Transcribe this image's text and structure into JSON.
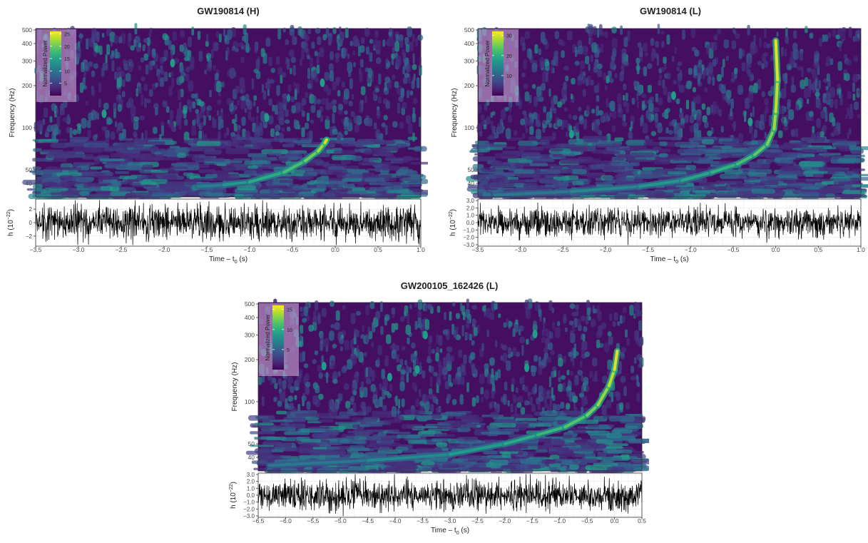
{
  "chart_data": [
    {
      "type": "heatmap",
      "title": "GW190814 (H)",
      "spectrogram": {
        "ylabel": "Frequency (Hz)",
        "yscale": "log",
        "ylim": [
          32,
          512
        ],
        "yticks": [
          "40",
          "50",
          "100",
          "200",
          "300",
          "400",
          "500"
        ],
        "colorbar": {
          "label": "Normalized Power",
          "min": 0,
          "max": 26,
          "ticks": [
            "5",
            "10",
            "15",
            "20",
            "25"
          ]
        },
        "track": {
          "points": [
            [
              -1.6,
              38
            ],
            [
              -1.3,
              39
            ],
            [
              -1.0,
              41
            ],
            [
              -0.6,
              48
            ],
            [
              -0.35,
              58
            ],
            [
              -0.2,
              68
            ],
            [
              -0.12,
              78
            ],
            [
              -0.1,
              82
            ]
          ],
          "peak_power": 25
        },
        "features": [
          [
            -2.7,
            126
          ],
          [
            -0.8,
            118
          ],
          [
            -1.9,
            290
          ],
          [
            -0.15,
            210
          ]
        ]
      },
      "strain": {
        "xlabel": "Time – t",
        "xlabel_sub": "0",
        "xlabel_unit": " (s)",
        "ylabel": "h (10",
        "ylabel_exp": "−22",
        "ylabel_close": ")",
        "xlim": [
          -3.5,
          1.0
        ],
        "ylim": [
          -3.5,
          3.5
        ],
        "xticks": [
          "−3.5",
          "−3.0",
          "−2.5",
          "−2.0",
          "−1.5",
          "−1.0",
          "−0.5",
          "0.0",
          "0.5",
          "1.0"
        ],
        "yticks": [
          "2",
          "0",
          "−2"
        ],
        "amplitude": 1.3
      }
    },
    {
      "type": "heatmap",
      "title": "GW190814 (L)",
      "spectrogram": {
        "ylabel": "Frequency (Hz)",
        "yscale": "log",
        "ylim": [
          32,
          512
        ],
        "yticks": [
          "40",
          "50",
          "100",
          "200",
          "300",
          "400",
          "500"
        ],
        "colorbar": {
          "label": "Normalized Power",
          "min": 0,
          "max": 32,
          "ticks": [
            "10",
            "20",
            "30"
          ]
        },
        "track": {
          "points": [
            [
              -3.3,
              33
            ],
            [
              -2.4,
              35
            ],
            [
              -1.6,
              38
            ],
            [
              -1.1,
              42
            ],
            [
              -0.75,
              48
            ],
            [
              -0.45,
              55
            ],
            [
              -0.25,
              64
            ],
            [
              -0.1,
              76
            ],
            [
              -0.02,
              98
            ],
            [
              0.0,
              130
            ],
            [
              0.02,
              220
            ],
            [
              0.0,
              420
            ]
          ],
          "peak_power": 30
        },
        "features": [
          [
            -0.3,
            110
          ],
          [
            -1.2,
            170
          ],
          [
            -2.4,
            90
          ]
        ]
      },
      "strain": {
        "xlabel": "Time – t",
        "xlabel_sub": "0",
        "xlabel_unit": " (s)",
        "ylabel": "h (10",
        "ylabel_exp": "−22",
        "ylabel_close": ")",
        "xlim": [
          -3.5,
          1.0
        ],
        "ylim": [
          -3.2,
          3.2
        ],
        "xticks": [
          "−3.5",
          "−3.0",
          "−2.5",
          "−2.0",
          "−1.5",
          "−1.0",
          "−0.5",
          "0.0",
          "0.5",
          "1.0"
        ],
        "yticks": [
          "3.0",
          "2.0",
          "1.0",
          "0.0",
          "−1.0",
          "−2.0",
          "−3.0"
        ],
        "amplitude": 1.0
      }
    },
    {
      "type": "heatmap",
      "title": "GW200105_162426 (L)",
      "spectrogram": {
        "ylabel": "Frequency (Hz)",
        "yscale": "log",
        "ylim": [
          32,
          512
        ],
        "yticks": [
          "40",
          "50",
          "100",
          "200",
          "300",
          "400",
          "500"
        ],
        "colorbar": {
          "label": "Normalized Power",
          "min": 0,
          "max": 16,
          "ticks": [
            "5",
            "10",
            "15"
          ]
        },
        "track": {
          "points": [
            [
              -6.3,
              35
            ],
            [
              -4.5,
              38
            ],
            [
              -3.0,
              42
            ],
            [
              -2.0,
              50
            ],
            [
              -1.4,
              58
            ],
            [
              -0.9,
              66
            ],
            [
              -0.5,
              80
            ],
            [
              -0.3,
              95
            ],
            [
              -0.1,
              130
            ],
            [
              0.0,
              170
            ],
            [
              0.05,
              230
            ]
          ],
          "peak_power": 15
        },
        "features": [
          [
            -3.45,
            300
          ],
          [
            -1.45,
            305
          ],
          [
            -5.3,
            180
          ],
          [
            -4.1,
            150
          ],
          [
            -1.6,
            175
          ],
          [
            -3.6,
            170
          ]
        ]
      },
      "strain": {
        "xlabel": "Time – t",
        "xlabel_sub": "0",
        "xlabel_unit": " (s)",
        "ylabel": "h (10",
        "ylabel_exp": "−22",
        "ylabel_close": ")",
        "xlim": [
          -6.5,
          0.5
        ],
        "ylim": [
          -3.2,
          3.2
        ],
        "xticks": [
          "−6.5",
          "−6.0",
          "−5.5",
          "−5.0",
          "−4.5",
          "−4.0",
          "−3.5",
          "−3.0",
          "−2.5",
          "−2.0",
          "−1.5",
          "−1.0",
          "−0.5",
          "0.0",
          "0.5"
        ],
        "yticks": [
          "3.0",
          "2.0",
          "1.0",
          "0.0",
          "−1.0",
          "−2.0",
          "−3.0"
        ],
        "amplitude": 1.1
      }
    }
  ]
}
